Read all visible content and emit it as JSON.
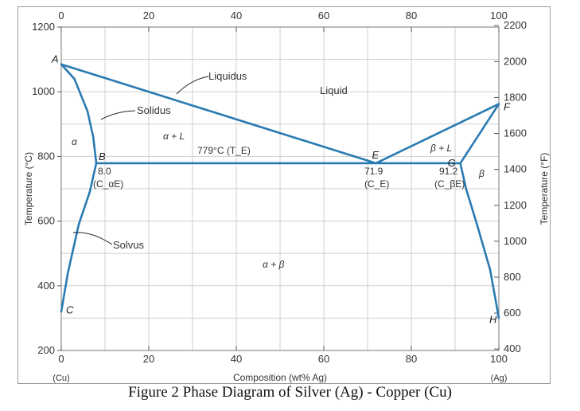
{
  "caption": "Figure 2  Phase Diagram of  Silver (Ag) - Copper (Cu)",
  "chart_data": {
    "type": "line",
    "title": "",
    "xlabel": "Composition (wt% Ag)",
    "ylabel": "Temperature (°C)",
    "ylabel_right": "Temperature (°F)",
    "xlim": [
      0,
      100
    ],
    "ylim": [
      200,
      1200
    ],
    "x_ticks": [
      0,
      20,
      40,
      60,
      80,
      100
    ],
    "y_ticks": [
      200,
      400,
      600,
      800,
      1000,
      1200
    ],
    "y_ticks_right": [
      400,
      600,
      800,
      1000,
      1200,
      1400,
      1600,
      1800,
      2000,
      2200
    ],
    "x_end_labels": {
      "left": "(Cu)",
      "right": "(Ag)"
    },
    "grid": true,
    "series": [
      {
        "values": [
          [
            0,
            1085
          ],
          [
            71.9,
            779
          ],
          [
            100,
            962
          ]
        ]
      },
      {
        "values": [
          [
            0,
            1085
          ],
          [
            3,
            1040
          ],
          [
            6,
            940
          ],
          [
            7.3,
            860
          ],
          [
            8,
            779
          ]
        ]
      },
      {
        "values": [
          [
            8,
            779
          ],
          [
            6.5,
            690
          ],
          [
            4,
            590
          ],
          [
            1.5,
            440
          ],
          [
            0,
            320
          ]
        ]
      },
      {
        "values": [
          [
            8,
            779
          ],
          [
            91.2,
            779
          ]
        ]
      },
      {
        "values": [
          [
            91.2,
            779
          ],
          [
            100,
            962
          ]
        ]
      },
      {
        "values": [
          [
            91.2,
            779
          ],
          [
            92.5,
            700
          ],
          [
            95,
            590
          ],
          [
            98,
            450
          ],
          [
            100,
            300
          ]
        ]
      }
    ],
    "point_labels": [
      {
        "text": "A",
        "x": 0,
        "y": 1085
      },
      {
        "text": "B",
        "x": 8,
        "y": 779
      },
      {
        "text": "C",
        "x": 0,
        "y": 320
      },
      {
        "text": "E",
        "x": 71.9,
        "y": 779
      },
      {
        "text": "F",
        "x": 100,
        "y": 962
      },
      {
        "text": "G",
        "x": 91.2,
        "y": 779
      },
      {
        "text": "H",
        "x": 100,
        "y": 300
      }
    ],
    "annotations": [
      {
        "text": "Liquidus"
      },
      {
        "text": "Solidus"
      },
      {
        "text": "Solvus"
      },
      {
        "text": "Liquid"
      },
      {
        "text": "α + L"
      },
      {
        "text": "β + L"
      },
      {
        "text": "α"
      },
      {
        "text": "β"
      },
      {
        "text": "α + β"
      },
      {
        "text": "779°C (T_E)"
      },
      {
        "text": "8.0"
      },
      {
        "text": "(C_αE)"
      },
      {
        "text": "71.9"
      },
      {
        "text": "(C_E)"
      },
      {
        "text": "91.2"
      },
      {
        "text": "(C_βE)"
      }
    ]
  }
}
